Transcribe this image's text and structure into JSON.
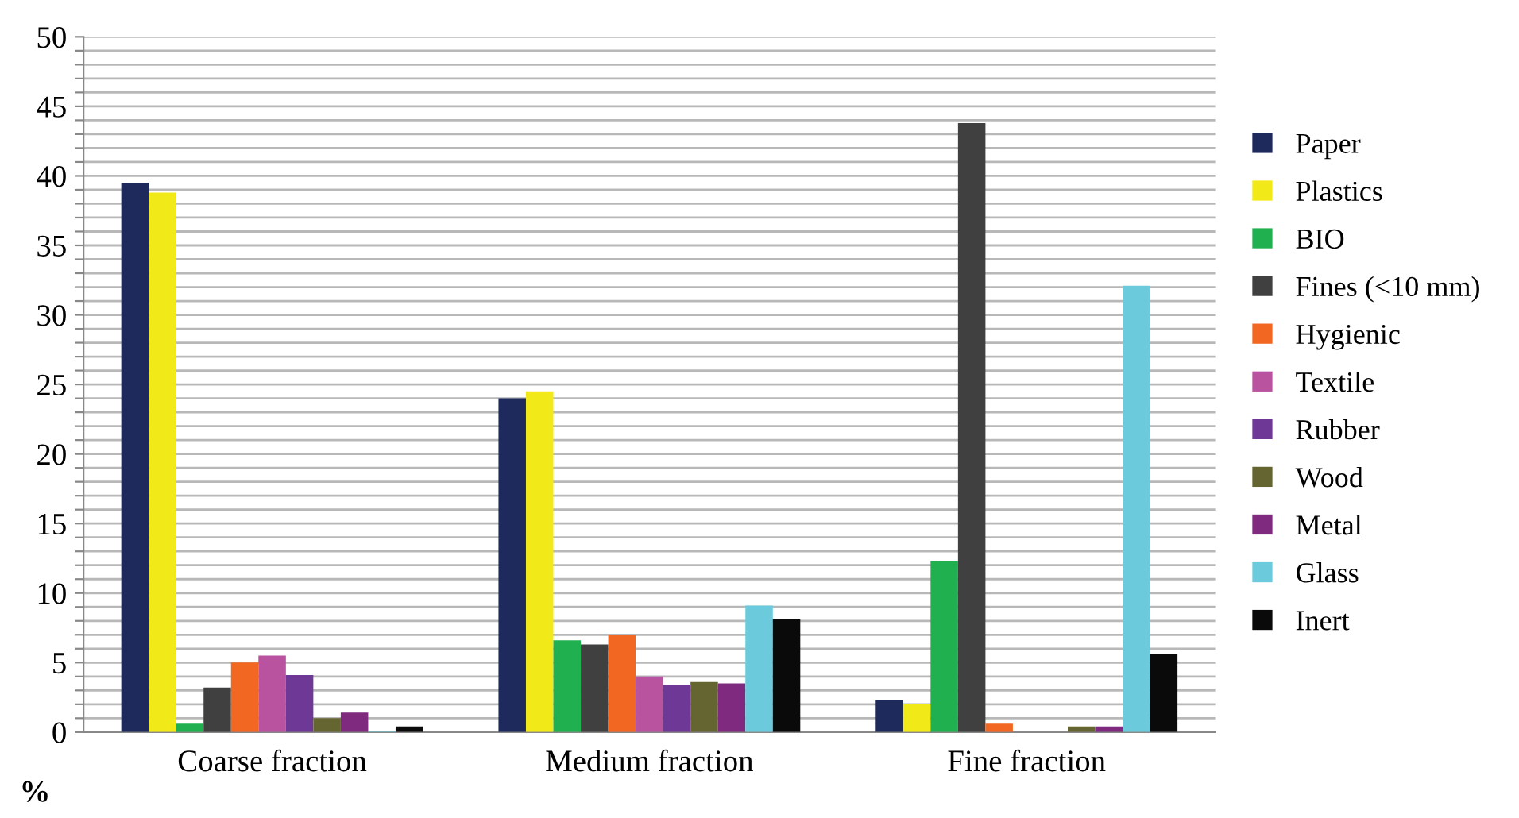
{
  "chart_data": {
    "type": "bar",
    "ylabel": "%",
    "categories": [
      "Coarse fraction",
      "Medium fraction",
      "Fine fraction"
    ],
    "series": [
      {
        "name": "Paper",
        "color": "#1f2a5c",
        "values": [
          39.5,
          24.0,
          2.3
        ]
      },
      {
        "name": "Plastics",
        "color": "#f2e919",
        "values": [
          38.8,
          24.5,
          2.0
        ]
      },
      {
        "name": "BIO",
        "color": "#21b04f",
        "values": [
          0.6,
          6.6,
          12.3
        ]
      },
      {
        "name": "Fines (<10 mm)",
        "color": "#404040",
        "values": [
          3.2,
          6.3,
          43.8
        ]
      },
      {
        "name": "Hygienic",
        "color": "#f26722",
        "values": [
          5.0,
          7.0,
          0.6
        ]
      },
      {
        "name": "Textile",
        "color": "#b9529f",
        "values": [
          5.5,
          4.0,
          0
        ]
      },
      {
        "name": "Rubber",
        "color": "#6e3996",
        "values": [
          4.1,
          3.4,
          0
        ]
      },
      {
        "name": "Wood",
        "color": "#656532",
        "values": [
          1.0,
          3.6,
          0.4
        ]
      },
      {
        "name": "Metal",
        "color": "#7f2a7e",
        "values": [
          1.4,
          3.5,
          0.4
        ]
      },
      {
        "name": "Glass",
        "color": "#6bcbdc",
        "values": [
          0.1,
          9.1,
          32.1
        ]
      },
      {
        "name": "Inert",
        "color": "#0a0a0a",
        "values": [
          0.4,
          8.1,
          5.6
        ]
      }
    ],
    "ylim": [
      0,
      50
    ],
    "yticks": [
      0,
      {
        "value": 1,
        "label": null
      },
      {
        "value": 2,
        "label": null
      },
      {
        "value": 3,
        "label": null
      },
      {
        "value": 4,
        "label": null
      },
      5,
      {
        "value": 6,
        "label": null
      },
      {
        "value": 7,
        "label": null
      },
      {
        "value": 8,
        "label": null
      },
      {
        "value": 9,
        "label": null
      },
      10,
      {
        "value": 11,
        "label": null
      },
      {
        "value": 12,
        "label": null
      },
      {
        "value": 13,
        "label": null
      },
      {
        "value": 14,
        "label": null
      },
      15,
      {
        "value": 16,
        "label": null
      },
      {
        "value": 17,
        "label": null
      },
      {
        "value": 18,
        "label": null
      },
      {
        "value": 19,
        "label": null
      },
      20,
      {
        "value": 21,
        "label": null
      },
      {
        "value": 22,
        "label": null
      },
      {
        "value": 23,
        "label": null
      },
      {
        "value": 24,
        "label": null
      },
      25,
      {
        "value": 26,
        "label": null
      },
      {
        "value": 27,
        "label": null
      },
      {
        "value": 28,
        "label": null
      },
      {
        "value": 29,
        "label": null
      },
      30,
      {
        "value": 31,
        "label": null
      },
      {
        "value": 32,
        "label": null
      },
      {
        "value": 33,
        "label": null
      },
      {
        "value": 34,
        "label": null
      },
      35,
      {
        "value": 36,
        "label": null
      },
      {
        "value": 37,
        "label": null
      },
      {
        "value": 38,
        "label": null
      },
      {
        "value": 39,
        "label": null
      },
      40,
      {
        "value": 41,
        "label": null
      },
      {
        "value": 42,
        "label": null
      },
      {
        "value": 43,
        "label": null
      },
      {
        "value": 44,
        "label": null
      },
      45,
      {
        "value": 46,
        "label": null
      },
      {
        "value": 47,
        "label": null
      },
      {
        "value": 48,
        "label": null
      },
      {
        "value": 49,
        "label": null
      },
      50
    ],
    "grid": "y",
    "legend": "right"
  }
}
